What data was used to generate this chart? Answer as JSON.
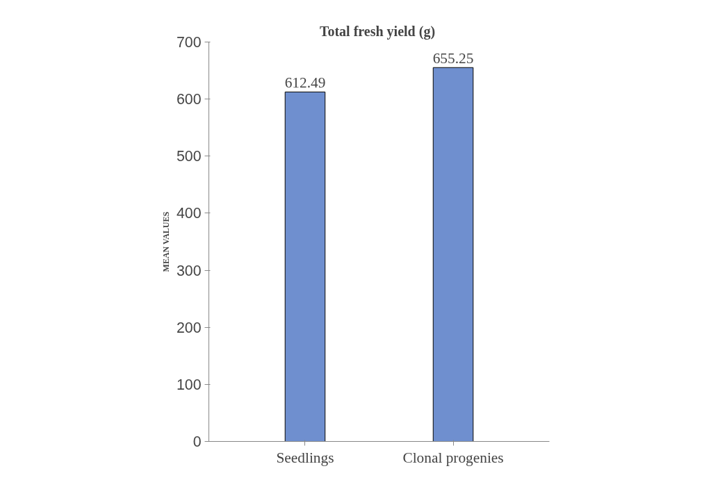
{
  "chart_data": {
    "type": "bar",
    "title": "Total fresh yield  (g)",
    "ylabel": "MEAN VALUES",
    "categories": [
      "Seedlings",
      "Clonal progenies"
    ],
    "values": [
      612.49,
      655.25
    ],
    "color": "#6f8fcf",
    "data_labels": true,
    "ylim": [
      0,
      700
    ],
    "yticks": [
      0,
      100,
      200,
      300,
      400,
      500,
      600,
      700
    ],
    "grid": false
  }
}
